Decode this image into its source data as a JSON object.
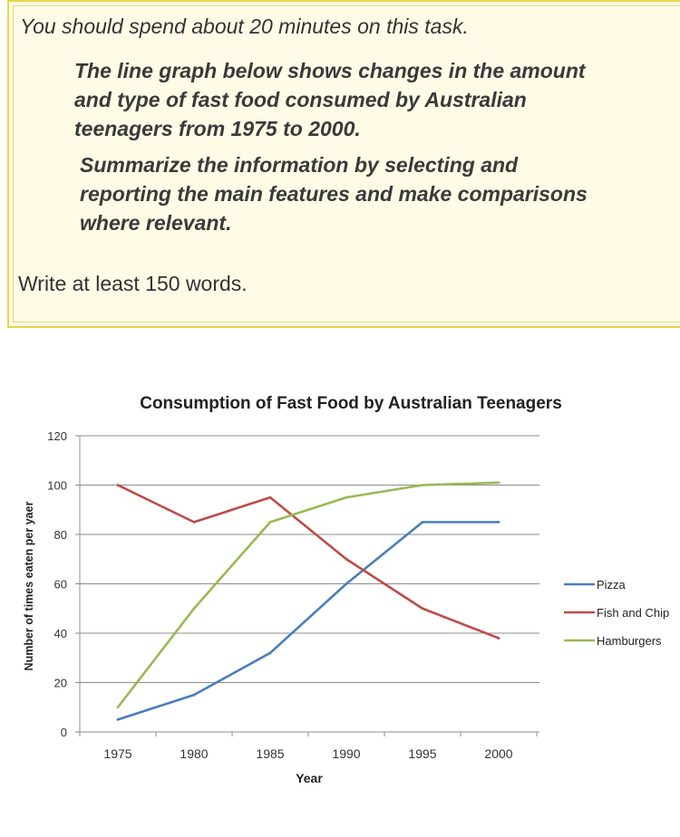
{
  "task": {
    "instruction": "You should spend about 20 minutes on this task.",
    "prompt_lines": [
      "The line graph below shows changes in the amount",
      "and type of fast food consumed by Australian",
      "teenagers from 1975 to 2000."
    ],
    "summary_lines": [
      "Summarize the information by selecting and",
      "reporting the main features and make comparisons",
      "where relevant."
    ],
    "word_count": "Write at least 150 words."
  },
  "chart_data": {
    "type": "line",
    "title": "Consumption of Fast Food by Australian Teenagers",
    "xlabel": "Year",
    "ylabel": "Number of times eaten per yaer",
    "x": [
      1975,
      1980,
      1985,
      1990,
      1995,
      2000
    ],
    "ylim": [
      0,
      120
    ],
    "yticks": [
      0,
      20,
      40,
      60,
      80,
      100,
      120
    ],
    "grid": true,
    "legend_position": "right",
    "series": [
      {
        "name": "Pizza",
        "color": "#4a7ebb",
        "values": [
          5,
          15,
          32,
          60,
          85,
          85
        ]
      },
      {
        "name": "Fish and Chip",
        "color": "#be4b48",
        "values": [
          100,
          85,
          95,
          70,
          50,
          38
        ]
      },
      {
        "name": "Hamburgers",
        "color": "#98b954",
        "values": [
          10,
          50,
          85,
          95,
          100,
          101
        ]
      }
    ]
  }
}
